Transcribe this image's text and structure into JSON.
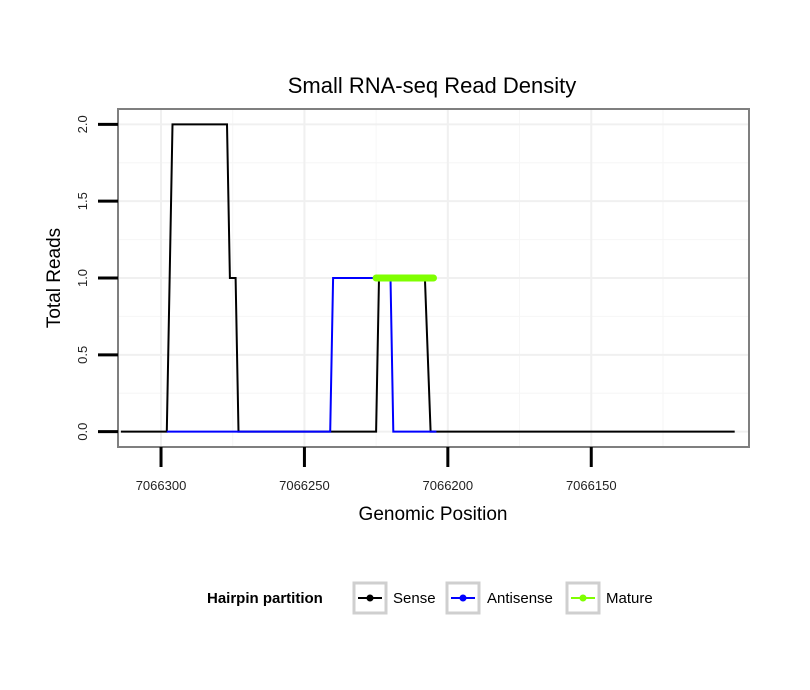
{
  "chart_data": {
    "type": "line",
    "title": "Small RNA-seq Read Density",
    "xlabel": "Genomic Position",
    "ylabel": "Total Reads",
    "xlim": [
      7066315,
      7066095
    ],
    "x_reversed": true,
    "ylim": [
      -0.1,
      2.1
    ],
    "x_ticks": [
      7066300,
      7066250,
      7066200,
      7066150
    ],
    "x_tick_labels": [
      "7066300",
      "7066250",
      "7066200",
      "7066150"
    ],
    "y_ticks": [
      0,
      0.5,
      1,
      1.5,
      2
    ],
    "y_tick_labels": [
      "0.0",
      "0.5",
      "1.0",
      "1.5",
      "2.0"
    ],
    "grid": true,
    "legend": {
      "title": "Hairpin partition",
      "position": "bottom"
    },
    "series": [
      {
        "name": "Sense",
        "color": "#000000",
        "x": [
          7066314,
          7066298,
          7066296,
          7066277,
          7066276,
          7066274,
          7066273,
          7066257,
          7066256,
          7066247,
          7066241,
          7066225,
          7066224,
          7066208,
          7066206,
          7066184,
          7066183,
          7066166,
          7066156,
          7066115,
          7066114,
          7066100
        ],
        "values": [
          0,
          0,
          2,
          2,
          1,
          1,
          0,
          0,
          0,
          0,
          0,
          0,
          1,
          1,
          0,
          0,
          0,
          0,
          0,
          0,
          0,
          0
        ]
      },
      {
        "name": "Antisense",
        "color": "#0000ff",
        "x": [
          7066298,
          7066274,
          7066241,
          7066240,
          7066225,
          7066220,
          7066219,
          7066204
        ],
        "values": [
          0,
          0,
          0,
          1,
          1,
          1,
          0,
          0
        ]
      },
      {
        "name": "Mature",
        "color": "#7fff00",
        "x": [
          7066225,
          7066205
        ],
        "values": [
          1,
          1
        ]
      }
    ]
  }
}
